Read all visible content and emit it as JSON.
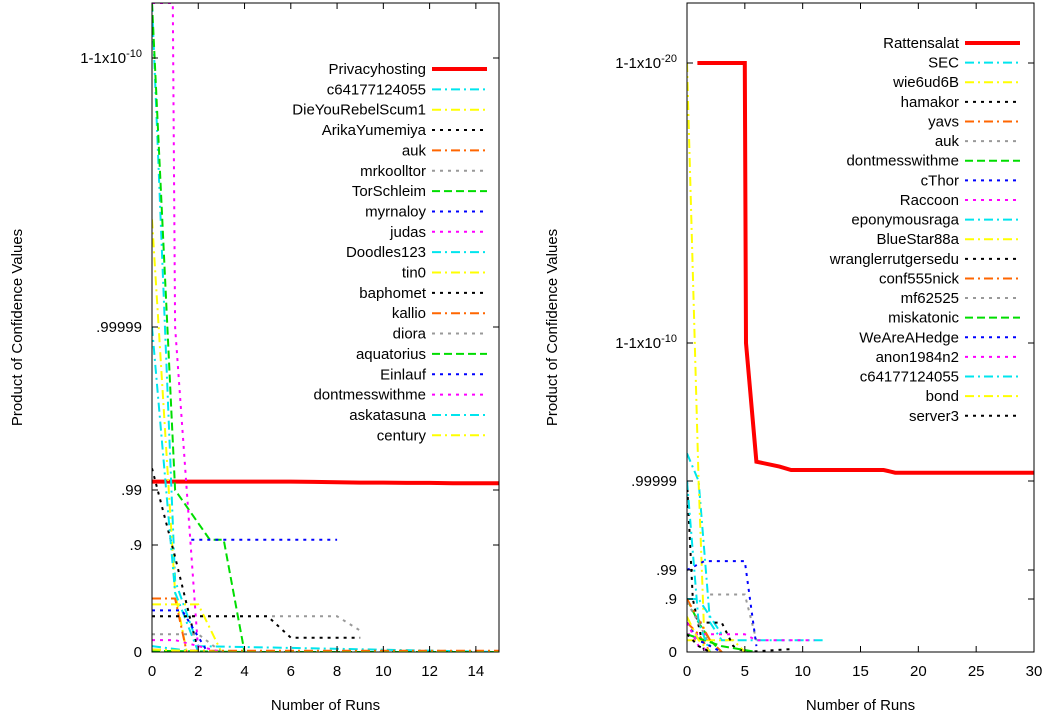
{
  "chart_data": [
    {
      "type": "line",
      "xlabel": "Number of Runs",
      "ylabel": "Product of Confidence Values",
      "xlim": [
        0,
        15
      ],
      "x_ticks": [
        "0",
        "2",
        "4",
        "6",
        "8",
        "10",
        "12",
        "14"
      ],
      "y_scale": "nonlinear (confidence)",
      "y_ticks": [
        "1-1x10-10",
        ".99999",
        ".99",
        ".9",
        "0"
      ],
      "grid": false,
      "legend_position": "top-right",
      "series": [
        {
          "name": "Privacyhosting",
          "color": "#ff0000",
          "dash": "solid",
          "width": 4,
          "x": [
            0,
            1,
            2,
            3,
            4,
            5,
            6,
            7,
            8,
            9,
            10,
            11,
            12,
            13,
            14,
            15
          ],
          "y": [
            0.993,
            0.993,
            0.993,
            0.993,
            0.993,
            0.993,
            0.993,
            0.9929,
            0.9928,
            0.9927,
            0.9927,
            0.9926,
            0.9926,
            0.9925,
            0.9925,
            0.9925
          ]
        },
        {
          "name": "c64177124055",
          "color": "#00e5ee",
          "dash": "dashdot",
          "width": 2,
          "x": [
            0,
            1,
            2,
            15
          ],
          "y": [
            1.0,
            0.6,
            0.05,
            0.0
          ]
        },
        {
          "name": "DieYouRebelScum1",
          "color": "#ffff00",
          "dash": "dashdot",
          "width": 2,
          "x": [
            0,
            1,
            1.5
          ],
          "y": [
            0.9999999,
            0.5,
            0.0
          ]
        },
        {
          "name": "ArikaYumemiya",
          "color": "#000000",
          "dash": "dotted",
          "width": 2,
          "x": [
            0,
            1,
            2
          ],
          "y": [
            0.996,
            0.8,
            0.0
          ]
        },
        {
          "name": "auk",
          "color": "#ff6600",
          "dash": "dashdot",
          "width": 2,
          "x": [
            0,
            1,
            1.5
          ],
          "y": [
            0.45,
            0.45,
            0.0
          ]
        },
        {
          "name": "mrkoolltor",
          "color": "#999999",
          "dash": "dotted",
          "width": 2,
          "x": [
            0,
            8,
            9
          ],
          "y": [
            0.3,
            0.3,
            0.18
          ]
        },
        {
          "name": "TorSchleim",
          "color": "#00dd00",
          "dash": "dashed",
          "width": 2,
          "x": [
            0,
            1,
            2.5,
            3.1,
            4
          ],
          "y": [
            1.0,
            0.99,
            0.92,
            0.92,
            0.0
          ]
        },
        {
          "name": "myrnaloy",
          "color": "#0000ff",
          "dash": "dotted",
          "width": 2,
          "x": [
            1.7,
            8
          ],
          "y": [
            0.92,
            0.92
          ]
        },
        {
          "name": "judas",
          "color": "#ff00ff",
          "dash": "dotted",
          "width": 2,
          "x": [
            0,
            0.9,
            1,
            2
          ],
          "y": [
            1.0,
            1.0,
            0.99999,
            0.0
          ]
        },
        {
          "name": "Doodles123",
          "color": "#00e5ee",
          "dash": "dashdot",
          "width": 2,
          "x": [
            0,
            1,
            2
          ],
          "y": [
            0.99999,
            0.5,
            0.0
          ]
        },
        {
          "name": "tin0",
          "color": "#ffff00",
          "dash": "dashdot",
          "width": 2,
          "x": [
            0,
            2,
            3
          ],
          "y": [
            0.4,
            0.4,
            0.0
          ]
        },
        {
          "name": "baphomet",
          "color": "#000000",
          "dash": "dotted",
          "width": 2,
          "x": [
            0,
            5,
            6,
            9
          ],
          "y": [
            0.3,
            0.3,
            0.12,
            0.12
          ]
        },
        {
          "name": "kallio",
          "color": "#ff6600",
          "dash": "dashdot",
          "width": 2,
          "x": [
            0,
            2,
            15
          ],
          "y": [
            0.02,
            0.01,
            0.01
          ]
        },
        {
          "name": "diora",
          "color": "#999999",
          "dash": "dotted",
          "width": 2,
          "x": [
            0,
            2,
            3
          ],
          "y": [
            0.15,
            0.15,
            0.0
          ]
        },
        {
          "name": "aquatorius",
          "color": "#00dd00",
          "dash": "dashed",
          "width": 2,
          "x": [
            0,
            4,
            15
          ],
          "y": [
            0.01,
            0.0,
            0.0
          ]
        },
        {
          "name": "Einlauf",
          "color": "#0000ff",
          "dash": "dotted",
          "width": 2,
          "x": [
            0,
            1.3,
            2.4
          ],
          "y": [
            0.35,
            0.35,
            0.0
          ]
        },
        {
          "name": "dontmesswithme",
          "color": "#ff00ff",
          "dash": "dotted",
          "width": 2,
          "x": [
            0,
            1,
            2,
            3
          ],
          "y": [
            0.1,
            0.1,
            0.05,
            0.0
          ]
        },
        {
          "name": "askatasuna",
          "color": "#00e5ee",
          "dash": "dashdot",
          "width": 2,
          "x": [
            0,
            2,
            15
          ],
          "y": [
            0.05,
            0.0,
            0.0
          ]
        },
        {
          "name": "century",
          "color": "#ffff00",
          "dash": "dashdot",
          "width": 2,
          "x": [
            0,
            3,
            15
          ],
          "y": [
            0.02,
            0.0,
            0.0
          ]
        }
      ]
    },
    {
      "type": "line",
      "xlabel": "Number of Runs",
      "ylabel": "Product of Confidence Values",
      "xlim": [
        0,
        30
      ],
      "x_ticks": [
        "0",
        "5",
        "10",
        "15",
        "20",
        "25",
        "30"
      ],
      "y_scale": "nonlinear (confidence)",
      "y_ticks": [
        "1-1x10-20",
        "1-1x10-10",
        ".99999",
        ".99",
        ".9",
        "0"
      ],
      "grid": false,
      "legend_position": "top-right",
      "series": [
        {
          "name": "Rattensalat",
          "color": "#ff0000",
          "dash": "solid",
          "width": 4,
          "x": [
            0.9,
            1,
            1.1,
            2,
            5,
            5.1,
            6,
            8,
            9,
            17,
            18,
            30
          ],
          "y": [
            1.0,
            1.0,
            1.0,
            1.0,
            1.0,
            0.9999999999,
            0.999998,
            0.999997,
            0.999996,
            0.999996,
            0.999995,
            0.999995
          ]
        },
        {
          "name": "SEC",
          "color": "#00e5ee",
          "dash": "dashdot",
          "width": 2,
          "x": [
            0,
            1,
            2,
            3,
            12
          ],
          "y": [
            0.999999,
            0.99999,
            0.5,
            0.2,
            0.2
          ]
        },
        {
          "name": "wie6ud6B",
          "color": "#ffff00",
          "dash": "dashdot",
          "width": 2,
          "x": [
            0,
            1,
            1.5
          ],
          "y": [
            1.0,
            0.99999,
            0.2
          ]
        },
        {
          "name": "hamakor",
          "color": "#000000",
          "dash": "dotted",
          "width": 2,
          "x": [
            0,
            0.5,
            1.5
          ],
          "y": [
            0.99999,
            0.9,
            0.0
          ]
        },
        {
          "name": "yavs",
          "color": "#ff6600",
          "dash": "dashdot",
          "width": 2,
          "x": [
            0,
            1,
            2
          ],
          "y": [
            0.5,
            0.3,
            0.0
          ]
        },
        {
          "name": "auk",
          "color": "#999999",
          "dash": "dotted",
          "width": 2,
          "x": [
            2,
            5,
            6
          ],
          "y": [
            0.93,
            0.93,
            0.2
          ]
        },
        {
          "name": "dontmesswithme",
          "color": "#00dd00",
          "dash": "dashed",
          "width": 2,
          "x": [
            0,
            1,
            2,
            3
          ],
          "y": [
            0.9,
            0.5,
            0.2,
            0.0
          ]
        },
        {
          "name": "cThor",
          "color": "#0000ff",
          "dash": "dotted",
          "width": 2,
          "x": [
            0,
            1.5,
            5,
            6
          ],
          "y": [
            0.99,
            0.995,
            0.995,
            0.1
          ]
        },
        {
          "name": "Raccoon",
          "color": "#ff00ff",
          "dash": "dotted",
          "width": 2,
          "x": [
            0,
            5,
            6,
            11
          ],
          "y": [
            0.3,
            0.3,
            0.2,
            0.2
          ]
        },
        {
          "name": "eponymousraga",
          "color": "#00e5ee",
          "dash": "dashdot",
          "width": 2,
          "x": [
            0,
            1,
            3
          ],
          "y": [
            0.9,
            0.9,
            0.3
          ]
        },
        {
          "name": "BlueStar88a",
          "color": "#ffff00",
          "dash": "dashdot",
          "width": 2,
          "x": [
            0,
            4,
            5
          ],
          "y": [
            0.2,
            0.2,
            0.0
          ]
        },
        {
          "name": "wranglerrutgersedu",
          "color": "#000000",
          "dash": "dotted",
          "width": 2,
          "x": [
            1,
            3,
            4,
            5,
            9
          ],
          "y": [
            0.5,
            0.5,
            0.1,
            0.0,
            0.05
          ]
        },
        {
          "name": "conf555nick",
          "color": "#ff6600",
          "dash": "dashdot",
          "width": 2,
          "x": [
            0,
            2,
            3
          ],
          "y": [
            0.9,
            0.2,
            0.0
          ]
        },
        {
          "name": "mf62525",
          "color": "#999999",
          "dash": "dotted",
          "width": 2,
          "x": [
            0,
            1,
            2
          ],
          "y": [
            0.85,
            0.5,
            0.1
          ]
        },
        {
          "name": "miskatonic",
          "color": "#00dd00",
          "dash": "dashed",
          "width": 2,
          "x": [
            0,
            3,
            6
          ],
          "y": [
            0.3,
            0.1,
            0.0
          ]
        },
        {
          "name": "WeAreAHedge",
          "color": "#0000ff",
          "dash": "dotted",
          "width": 2,
          "x": [
            0,
            1,
            3
          ],
          "y": [
            0.5,
            0.2,
            0.0
          ]
        },
        {
          "name": "anon1984n2",
          "color": "#ff00ff",
          "dash": "dotted",
          "width": 2,
          "x": [
            0,
            1,
            2
          ],
          "y": [
            0.5,
            0.1,
            0.0
          ]
        },
        {
          "name": "c64177124055",
          "color": "#00e5ee",
          "dash": "dashdot",
          "width": 2,
          "x": [
            0,
            1,
            2
          ],
          "y": [
            0.99999,
            0.5,
            0.0
          ]
        },
        {
          "name": "bond",
          "color": "#ffff00",
          "dash": "dashdot",
          "width": 2,
          "x": [
            0,
            1,
            2
          ],
          "y": [
            0.6,
            0.2,
            0.0
          ]
        },
        {
          "name": "server3",
          "color": "#000000",
          "dash": "dotted",
          "width": 2,
          "x": [
            0,
            1,
            2
          ],
          "y": [
            0.3,
            0.1,
            0.0
          ]
        }
      ]
    }
  ]
}
